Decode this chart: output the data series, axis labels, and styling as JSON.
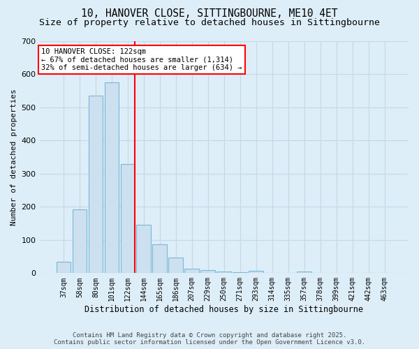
{
  "title_line1": "10, HANOVER CLOSE, SITTINGBOURNE, ME10 4ET",
  "title_line2": "Size of property relative to detached houses in Sittingbourne",
  "xlabel": "Distribution of detached houses by size in Sittingbourne",
  "ylabel": "Number of detached properties",
  "categories": [
    "37sqm",
    "58sqm",
    "80sqm",
    "101sqm",
    "122sqm",
    "144sqm",
    "165sqm",
    "186sqm",
    "207sqm",
    "229sqm",
    "250sqm",
    "271sqm",
    "293sqm",
    "314sqm",
    "335sqm",
    "357sqm",
    "378sqm",
    "399sqm",
    "421sqm",
    "442sqm",
    "463sqm"
  ],
  "values": [
    35,
    193,
    535,
    575,
    330,
    145,
    88,
    47,
    13,
    10,
    5,
    2,
    8,
    0,
    0,
    4,
    0,
    0,
    0,
    0,
    0
  ],
  "bar_color": "#cce0f0",
  "bar_edge_color": "#7ab8d9",
  "highlight_index": 4,
  "highlight_line_color": "red",
  "annotation_text": "10 HANOVER CLOSE: 122sqm\n← 67% of detached houses are smaller (1,314)\n32% of semi-detached houses are larger (634) →",
  "ylim": [
    0,
    700
  ],
  "yticks": [
    0,
    100,
    200,
    300,
    400,
    500,
    600,
    700
  ],
  "footer_line1": "Contains HM Land Registry data © Crown copyright and database right 2025.",
  "footer_line2": "Contains public sector information licensed under the Open Government Licence v3.0.",
  "bg_color": "#ddeef8",
  "grid_color": "#c5d8e8",
  "title_fontsize": 10.5,
  "subtitle_fontsize": 9.5
}
